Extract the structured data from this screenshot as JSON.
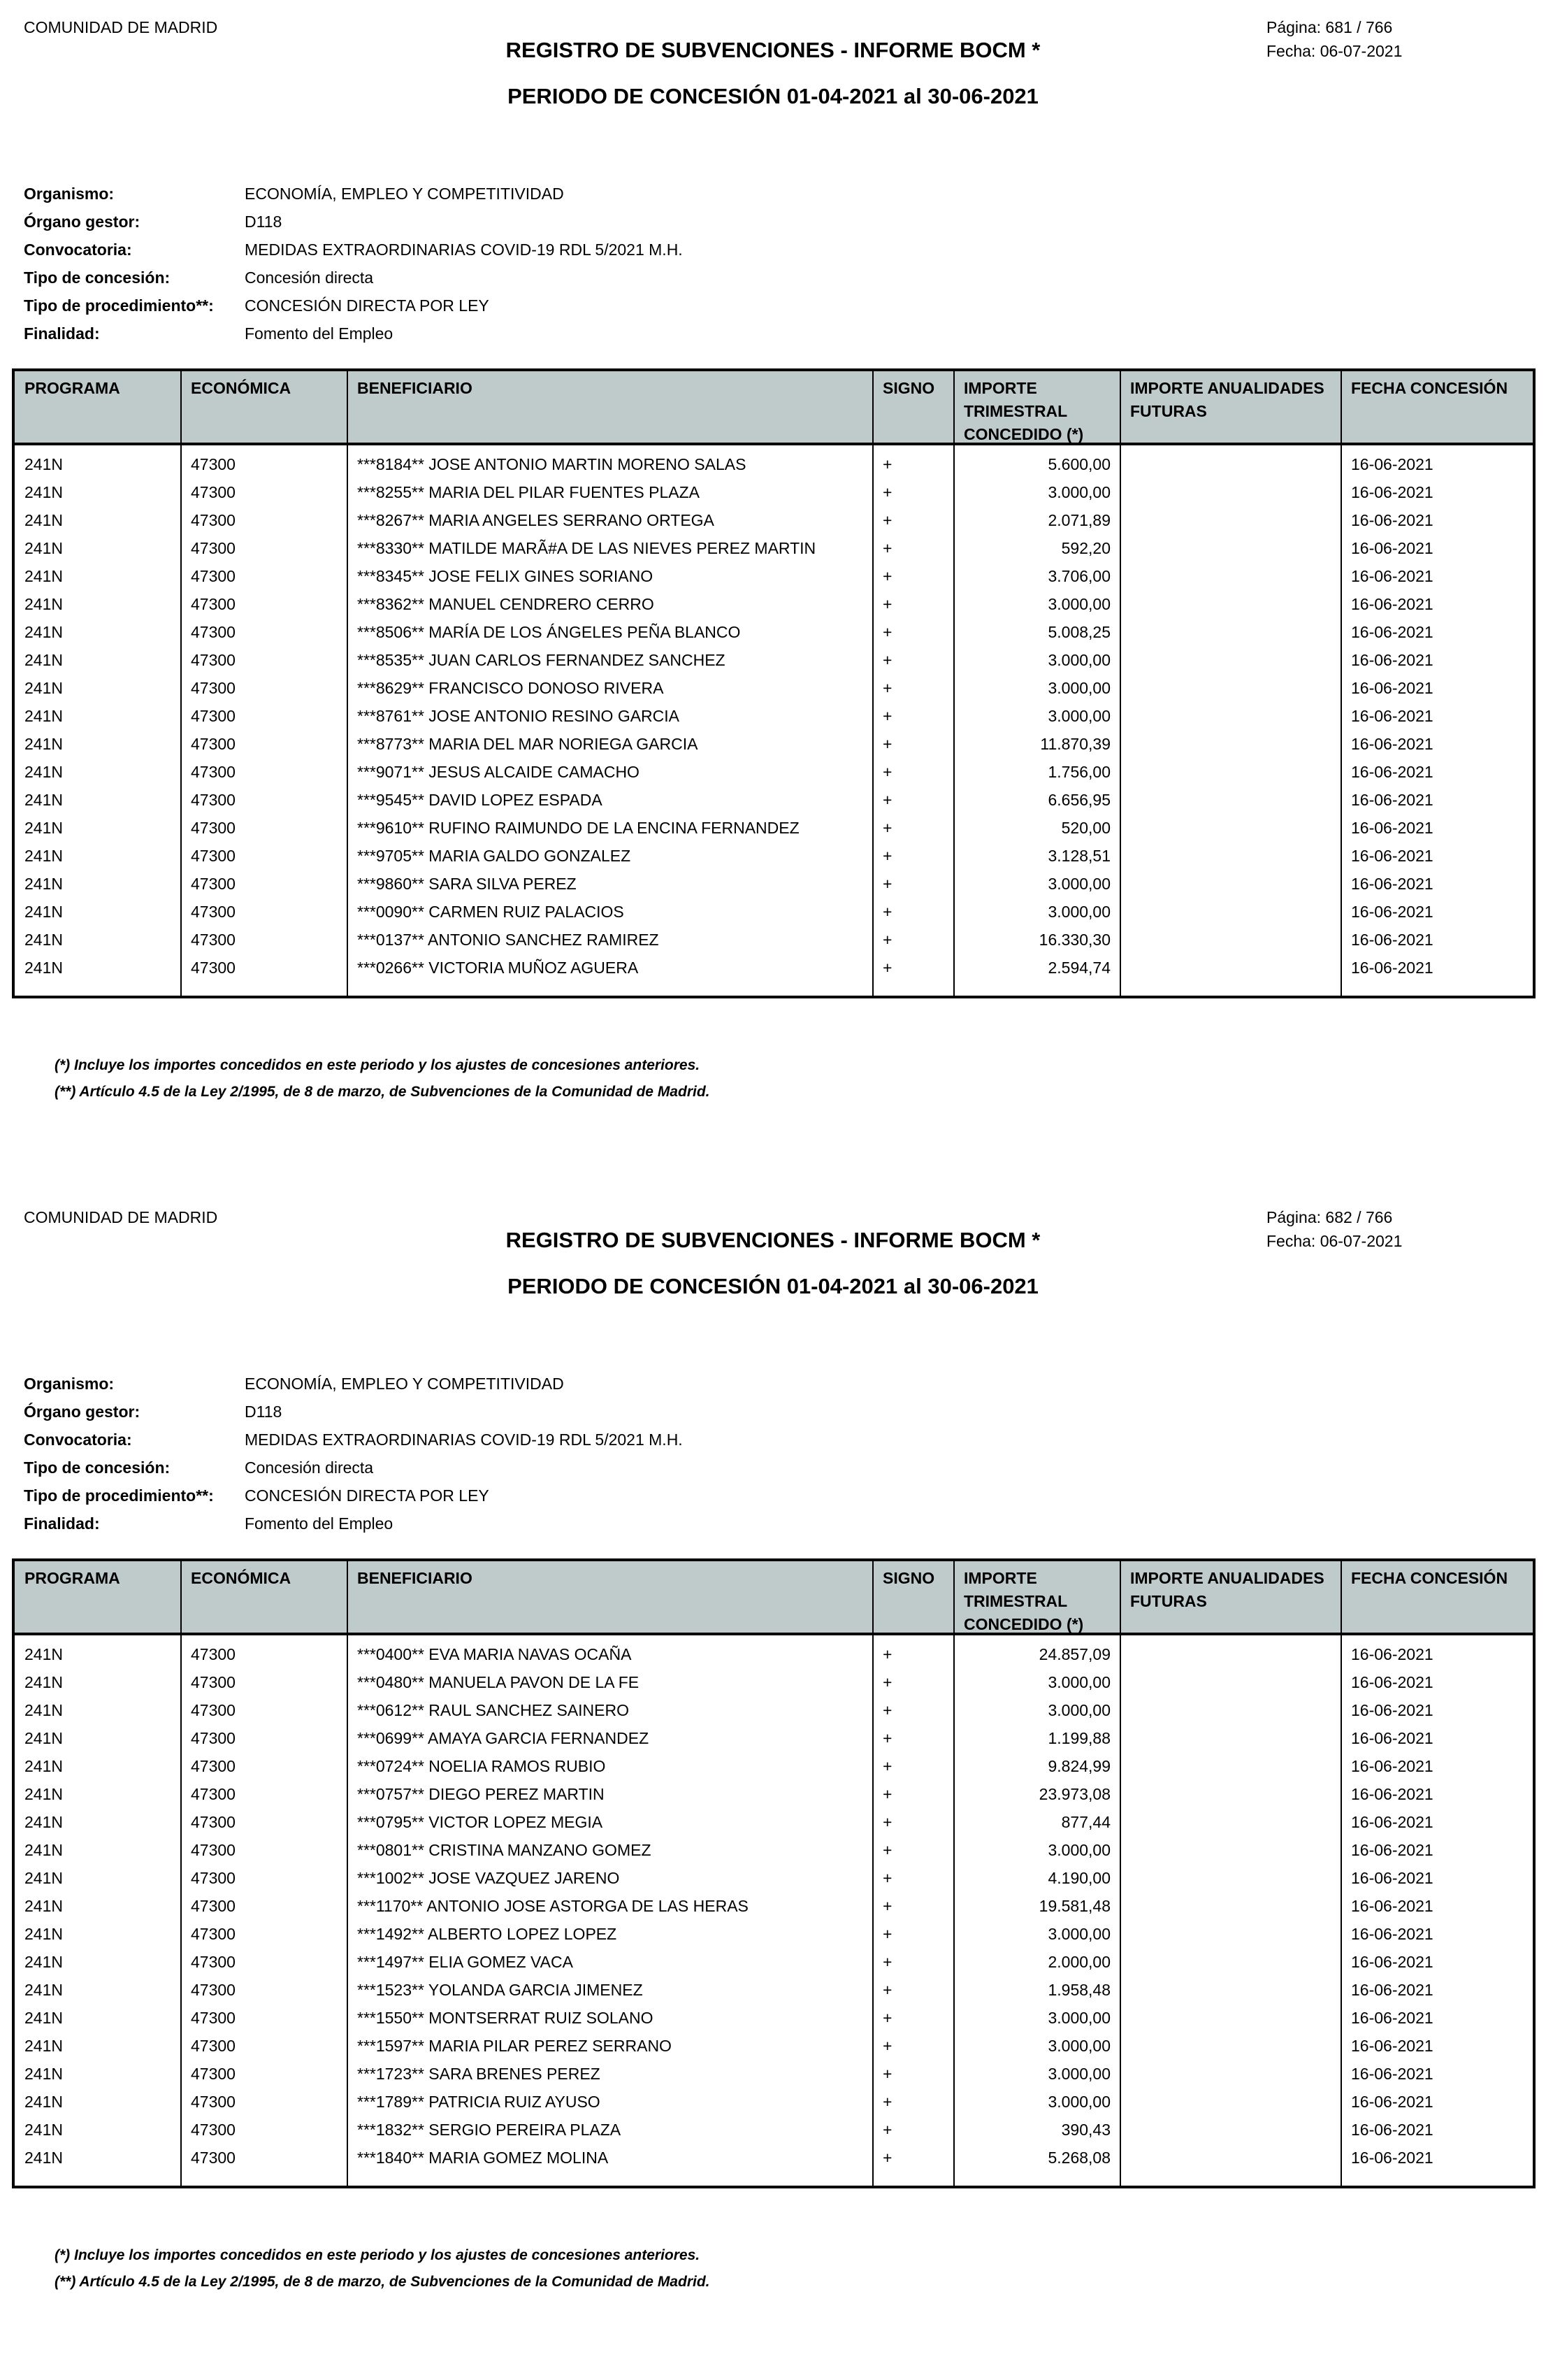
{
  "report": {
    "organization": "COMUNIDAD DE MADRID",
    "title": "REGISTRO DE SUBVENCIONES - INFORME BOCM   *",
    "period": "PERIODO DE CONCESIÓN 01-04-2021 al 30-06-2021",
    "date": "Fecha:  06-07-2021",
    "meta": [
      {
        "label": "Organismo:",
        "value": "ECONOMÍA, EMPLEO Y COMPETITIVIDAD"
      },
      {
        "label": "Órgano gestor:",
        "value": "D118"
      },
      {
        "label": "Convocatoria:",
        "value": "MEDIDAS EXTRAORDINARIAS COVID-19 RDL 5/2021 M.H."
      },
      {
        "label": "Tipo de concesión:",
        "value": "Concesión directa"
      },
      {
        "label": "Tipo de procedimiento**:",
        "value": "CONCESIÓN DIRECTA POR LEY"
      },
      {
        "label": "Finalidad:",
        "value": "Fomento del Empleo"
      }
    ],
    "columns": [
      "PROGRAMA",
      "ECONÓMICA",
      "BENEFICIARIO",
      "SIGNO",
      "IMPORTE TRIMESTRAL CONCEDIDO (*)",
      "IMPORTE ANUALIDADES FUTURAS",
      "FECHA CONCESIÓN"
    ],
    "footnotes": [
      "(*) Incluye los importes concedidos en este periodo y los ajustes de concesiones anteriores.",
      "(**) Artículo 4.5 de la Ley 2/1995, de 8 de marzo, de Subvenciones de la Comunidad de Madrid."
    ],
    "header_color": "#bfcbca"
  },
  "pages": [
    {
      "page_label": "Página: 681 / 766",
      "rows": [
        [
          "241N",
          "47300",
          "***8184** JOSE ANTONIO MARTIN MORENO SALAS",
          "+",
          "5.600,00",
          "",
          "16-06-2021"
        ],
        [
          "241N",
          "47300",
          "***8255** MARIA DEL PILAR FUENTES PLAZA",
          "+",
          "3.000,00",
          "",
          "16-06-2021"
        ],
        [
          "241N",
          "47300",
          "***8267** MARIA ANGELES SERRANO ORTEGA",
          "+",
          "2.071,89",
          "",
          "16-06-2021"
        ],
        [
          "241N",
          "47300",
          "***8330** MATILDE MARÃ#A DE LAS NIEVES PEREZ MARTIN",
          "+",
          "592,20",
          "",
          "16-06-2021"
        ],
        [
          "241N",
          "47300",
          "***8345** JOSE FELIX GINES SORIANO",
          "+",
          "3.706,00",
          "",
          "16-06-2021"
        ],
        [
          "241N",
          "47300",
          "***8362** MANUEL CENDRERO CERRO",
          "+",
          "3.000,00",
          "",
          "16-06-2021"
        ],
        [
          "241N",
          "47300",
          "***8506** MARÍA DE LOS ÁNGELES PEÑA BLANCO",
          "+",
          "5.008,25",
          "",
          "16-06-2021"
        ],
        [
          "241N",
          "47300",
          "***8535** JUAN CARLOS FERNANDEZ SANCHEZ",
          "+",
          "3.000,00",
          "",
          "16-06-2021"
        ],
        [
          "241N",
          "47300",
          "***8629** FRANCISCO DONOSO RIVERA",
          "+",
          "3.000,00",
          "",
          "16-06-2021"
        ],
        [
          "241N",
          "47300",
          "***8761** JOSE ANTONIO RESINO GARCIA",
          "+",
          "3.000,00",
          "",
          "16-06-2021"
        ],
        [
          "241N",
          "47300",
          "***8773** MARIA DEL MAR NORIEGA GARCIA",
          "+",
          "11.870,39",
          "",
          "16-06-2021"
        ],
        [
          "241N",
          "47300",
          "***9071** JESUS ALCAIDE CAMACHO",
          "+",
          "1.756,00",
          "",
          "16-06-2021"
        ],
        [
          "241N",
          "47300",
          "***9545** DAVID LOPEZ ESPADA",
          "+",
          "6.656,95",
          "",
          "16-06-2021"
        ],
        [
          "241N",
          "47300",
          "***9610** RUFINO RAIMUNDO DE LA ENCINA FERNANDEZ",
          "+",
          "520,00",
          "",
          "16-06-2021"
        ],
        [
          "241N",
          "47300",
          "***9705** MARIA GALDO GONZALEZ",
          "+",
          "3.128,51",
          "",
          "16-06-2021"
        ],
        [
          "241N",
          "47300",
          "***9860** SARA SILVA PEREZ",
          "+",
          "3.000,00",
          "",
          "16-06-2021"
        ],
        [
          "241N",
          "47300",
          "***0090** CARMEN RUIZ PALACIOS",
          "+",
          "3.000,00",
          "",
          "16-06-2021"
        ],
        [
          "241N",
          "47300",
          "***0137** ANTONIO SANCHEZ RAMIREZ",
          "+",
          "16.330,30",
          "",
          "16-06-2021"
        ],
        [
          "241N",
          "47300",
          "***0266** VICTORIA MUÑOZ AGUERA",
          "+",
          "2.594,74",
          "",
          "16-06-2021"
        ]
      ]
    },
    {
      "page_label": "Página: 682 / 766",
      "rows": [
        [
          "241N",
          "47300",
          "***0400** EVA MARIA NAVAS OCAÑA",
          "+",
          "24.857,09",
          "",
          "16-06-2021"
        ],
        [
          "241N",
          "47300",
          "***0480** MANUELA PAVON DE LA FE",
          "+",
          "3.000,00",
          "",
          "16-06-2021"
        ],
        [
          "241N",
          "47300",
          "***0612** RAUL SANCHEZ SAINERO",
          "+",
          "3.000,00",
          "",
          "16-06-2021"
        ],
        [
          "241N",
          "47300",
          "***0699** AMAYA GARCIA FERNANDEZ",
          "+",
          "1.199,88",
          "",
          "16-06-2021"
        ],
        [
          "241N",
          "47300",
          "***0724** NOELIA RAMOS RUBIO",
          "+",
          "9.824,99",
          "",
          "16-06-2021"
        ],
        [
          "241N",
          "47300",
          "***0757** DIEGO PEREZ MARTIN",
          "+",
          "23.973,08",
          "",
          "16-06-2021"
        ],
        [
          "241N",
          "47300",
          "***0795** VICTOR LOPEZ MEGIA",
          "+",
          "877,44",
          "",
          "16-06-2021"
        ],
        [
          "241N",
          "47300",
          "***0801** CRISTINA MANZANO GOMEZ",
          "+",
          "3.000,00",
          "",
          "16-06-2021"
        ],
        [
          "241N",
          "47300",
          "***1002** JOSE VAZQUEZ JARENO",
          "+",
          "4.190,00",
          "",
          "16-06-2021"
        ],
        [
          "241N",
          "47300",
          "***1170** ANTONIO JOSE ASTORGA DE LAS HERAS",
          "+",
          "19.581,48",
          "",
          "16-06-2021"
        ],
        [
          "241N",
          "47300",
          "***1492** ALBERTO LOPEZ LOPEZ",
          "+",
          "3.000,00",
          "",
          "16-06-2021"
        ],
        [
          "241N",
          "47300",
          "***1497** ELIA GOMEZ VACA",
          "+",
          "2.000,00",
          "",
          "16-06-2021"
        ],
        [
          "241N",
          "47300",
          "***1523** YOLANDA GARCIA JIMENEZ",
          "+",
          "1.958,48",
          "",
          "16-06-2021"
        ],
        [
          "241N",
          "47300",
          "***1550** MONTSERRAT RUIZ SOLANO",
          "+",
          "3.000,00",
          "",
          "16-06-2021"
        ],
        [
          "241N",
          "47300",
          "***1597** MARIA PILAR PEREZ SERRANO",
          "+",
          "3.000,00",
          "",
          "16-06-2021"
        ],
        [
          "241N",
          "47300",
          "***1723** SARA BRENES PEREZ",
          "+",
          "3.000,00",
          "",
          "16-06-2021"
        ],
        [
          "241N",
          "47300",
          "***1789** PATRICIA RUIZ AYUSO",
          "+",
          "3.000,00",
          "",
          "16-06-2021"
        ],
        [
          "241N",
          "47300",
          "***1832** SERGIO PEREIRA PLAZA",
          "+",
          "390,43",
          "",
          "16-06-2021"
        ],
        [
          "241N",
          "47300",
          "***1840** MARIA GOMEZ MOLINA",
          "+",
          "5.268,08",
          "",
          "16-06-2021"
        ]
      ]
    }
  ]
}
